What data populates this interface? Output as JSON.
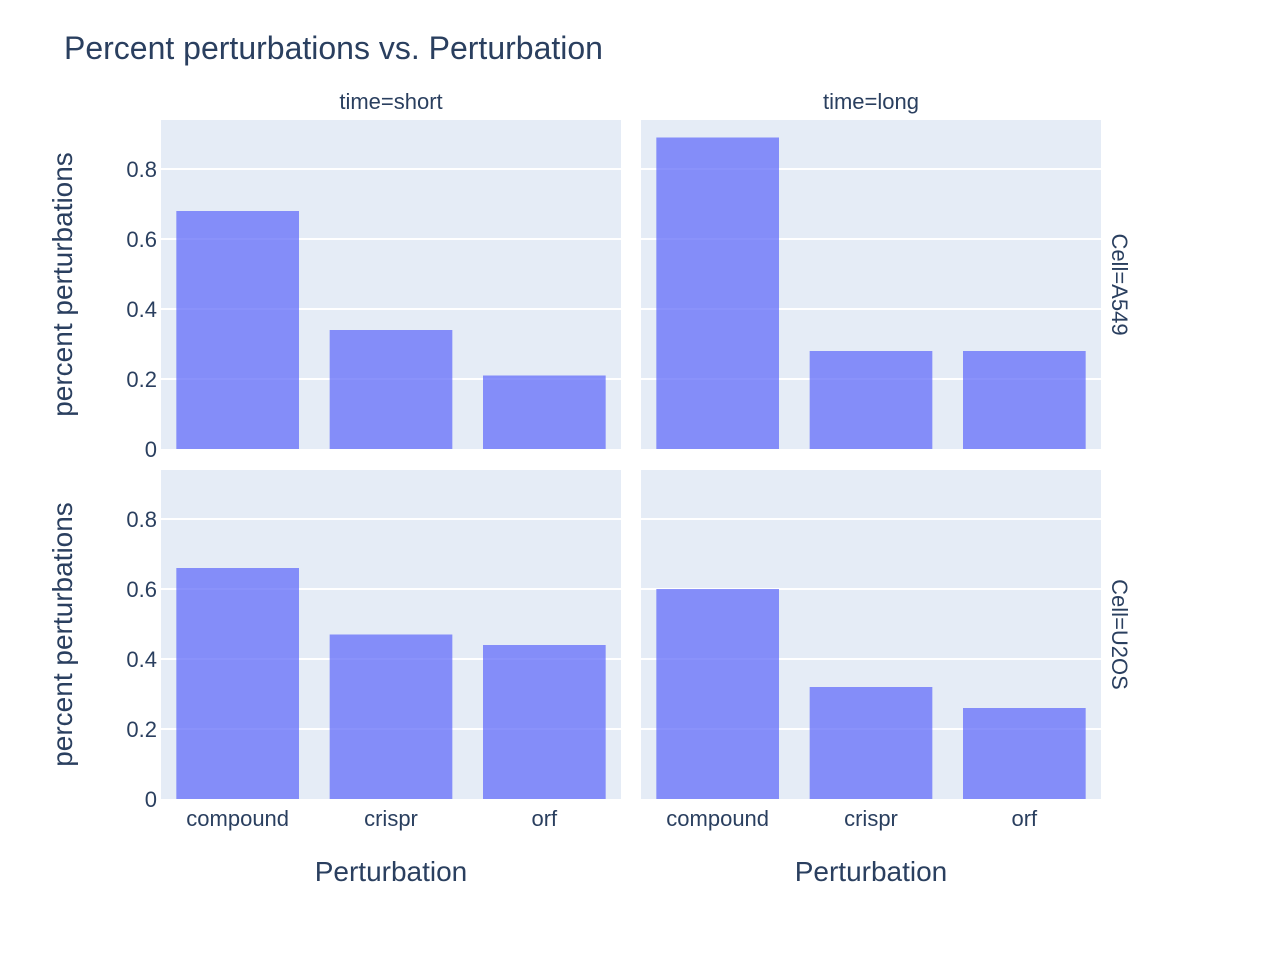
{
  "chart_data": {
    "type": "bar",
    "title": "Percent perturbations vs. Perturbation",
    "xlabel": "Perturbation",
    "ylabel": "percent perturbations",
    "categories": [
      "compound",
      "crispr",
      "orf"
    ],
    "ylim": [
      0,
      0.94
    ],
    "yticks": [
      0,
      0.2,
      0.4,
      0.6,
      0.8
    ],
    "ytick_labels": [
      "0",
      "0.2",
      "0.4",
      "0.6",
      "0.8"
    ],
    "grid": true,
    "colors": {
      "bar": "#636efa",
      "panel_bg": "#e5ecf6",
      "grid": "#ffffff",
      "text": "#2a3f5f"
    },
    "col_facets": [
      "time=short",
      "time=long"
    ],
    "row_facets": [
      "Cell=A549",
      "Cell=U2OS"
    ],
    "panels": [
      {
        "row": "Cell=A549",
        "col": "time=short",
        "values": [
          0.68,
          0.34,
          0.21
        ]
      },
      {
        "row": "Cell=A549",
        "col": "time=long",
        "values": [
          0.89,
          0.28,
          0.28
        ]
      },
      {
        "row": "Cell=U2OS",
        "col": "time=short",
        "values": [
          0.66,
          0.47,
          0.44
        ]
      },
      {
        "row": "Cell=U2OS",
        "col": "time=long",
        "values": [
          0.6,
          0.32,
          0.26
        ]
      }
    ]
  }
}
